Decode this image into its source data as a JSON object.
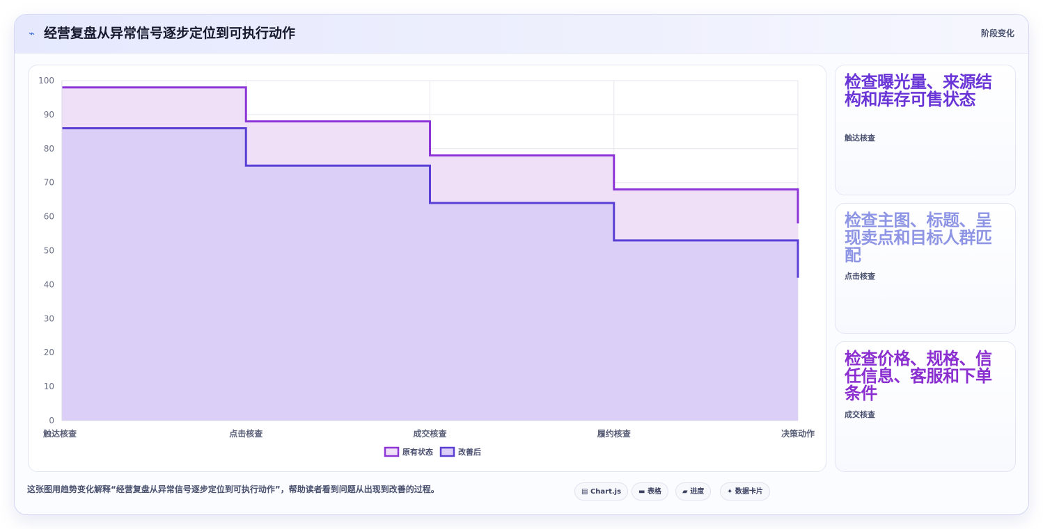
{
  "header": {
    "icon": "trend-line-icon",
    "title": "经营复盘从异常信号逐步定位到可执行动作",
    "tag": "阶段变化"
  },
  "chart_data": {
    "type": "area",
    "step": true,
    "categories": [
      "触达核查",
      "点击核查",
      "成交核查",
      "履约核查",
      "决策动作"
    ],
    "series": [
      {
        "name": "原有状态",
        "values": [
          98,
          88,
          78,
          68,
          58
        ],
        "color": "#8e35d8",
        "fill": "#efe0f8"
      },
      {
        "name": "改善后",
        "values": [
          86,
          75,
          64,
          53,
          42
        ],
        "color": "#5a3fd4",
        "fill": "#dccff7"
      }
    ],
    "ylim": [
      0,
      100
    ],
    "yticks": [
      0,
      10,
      20,
      30,
      40,
      50,
      60,
      70,
      80,
      90,
      100
    ],
    "grid": true,
    "legend_position": "bottom"
  },
  "side_cards": [
    {
      "headline": "检查曝光量、来源结构和库存可售状态",
      "caption": "触达核查",
      "color": "#6a35d6"
    },
    {
      "headline": "检查主图、标题、呈现卖点和目标人群匹配",
      "caption": "点击核查",
      "color": "#8e95e4"
    },
    {
      "headline": "检查价格、规格、信任信息、客服和下单条件",
      "caption": "成交核查",
      "color": "#8a2ed0"
    }
  ],
  "footer": {
    "description": "这张图用趋势变化解释“经营复盘从异常信号逐步定位到可执行动作”，帮助读者看到问题从出现到改善的过程。",
    "pills": [
      {
        "icon": "chart-icon",
        "glyph": "▤",
        "label": "Chart.js"
      },
      {
        "icon": "table-icon",
        "glyph": "▬",
        "label": "表格"
      },
      {
        "icon": "progress-icon",
        "glyph": "▰",
        "label": "进度"
      },
      {
        "icon": "data-card-icon",
        "glyph": "✦",
        "label": "数据卡片"
      }
    ]
  }
}
